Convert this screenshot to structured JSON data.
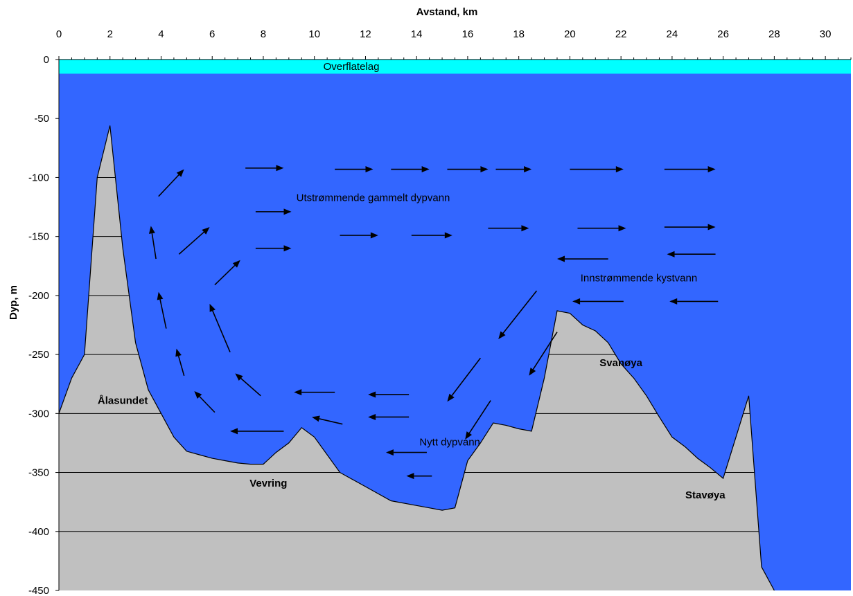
{
  "chart_data": {
    "type": "area",
    "xlabel": "Avstand, km",
    "ylabel": "Dyp, m",
    "xlim": [
      0,
      31
    ],
    "ylim": [
      -450,
      0
    ],
    "x_ticks": [
      0,
      2,
      4,
      6,
      8,
      10,
      12,
      14,
      16,
      18,
      20,
      22,
      24,
      26,
      28,
      30
    ],
    "y_ticks": [
      0,
      -50,
      -100,
      -150,
      -200,
      -250,
      -300,
      -350,
      -400,
      -450
    ],
    "x_minor_step": 0.5,
    "x_axis_position": "top",
    "grid": "horizontal, inside seabed only",
    "colors": {
      "water": "#3366ff",
      "surface_layer": "#00ffff",
      "seabed": "#c0c0c0",
      "arrows": "#000000"
    },
    "surface_layer": {
      "label": "Overflatelag",
      "depth_from": 0,
      "depth_to": -12
    },
    "bathymetry": {
      "x": [
        0,
        0.5,
        1,
        1.5,
        2,
        2.5,
        3,
        3.5,
        4,
        4.5,
        5,
        5.5,
        6,
        6.5,
        7,
        7.5,
        8,
        8.5,
        9,
        9.5,
        10,
        11,
        12,
        13,
        14,
        14.5,
        15,
        15.5,
        16,
        16.5,
        17,
        17.5,
        18,
        18.5,
        19,
        19.5,
        20,
        20.5,
        21,
        21.5,
        22,
        22.5,
        23,
        23.5,
        24,
        24.5,
        25,
        25.5,
        26,
        26.5,
        27,
        27.5,
        28
      ],
      "y": [
        -300,
        -270,
        -250,
        -100,
        -56,
        -160,
        -240,
        -280,
        -300,
        -320,
        -332,
        -335,
        -338,
        -340,
        -342,
        -343,
        -343,
        -333,
        -325,
        -312,
        -320,
        -350,
        -362,
        -374,
        -378,
        -380,
        -382,
        -380,
        -340,
        -325,
        -308,
        -310,
        -313,
        -315,
        -270,
        -213,
        -215,
        -225,
        -230,
        -240,
        -258,
        -270,
        -285,
        -303,
        -320,
        -328,
        -338,
        -346,
        -355,
        -320,
        -285,
        -430,
        -450
      ]
    },
    "annotations": [
      {
        "text": "Utstrømmende gammelt dypvann",
        "x": 12.3,
        "y": -120
      },
      {
        "text": "Innstrømmende kystvann",
        "x": 22.7,
        "y": -188
      },
      {
        "text": "Nytt dypvann",
        "x": 15.3,
        "y": -327
      },
      {
        "text": "Ålasundet",
        "x": 2.5,
        "y": -292,
        "bold": true
      },
      {
        "text": "Vevring",
        "x": 8.2,
        "y": -362,
        "bold": true
      },
      {
        "text": "Svanøya",
        "x": 22,
        "y": -260,
        "bold": true
      },
      {
        "text": "Stavøya",
        "x": 25.3,
        "y": -372,
        "bold": true
      }
    ],
    "flow_arrows": [
      [
        7.3,
        -92,
        8.8,
        -92
      ],
      [
        10.8,
        -93,
        12.3,
        -93
      ],
      [
        13,
        -93,
        14.5,
        -93
      ],
      [
        15.2,
        -93,
        16.8,
        -93
      ],
      [
        17.1,
        -93,
        18.5,
        -93
      ],
      [
        20,
        -93,
        22.1,
        -93
      ],
      [
        23.7,
        -93,
        25.7,
        -93
      ],
      [
        7.7,
        -129,
        9.1,
        -129
      ],
      [
        11,
        -149,
        12.5,
        -149
      ],
      [
        13.8,
        -149,
        15.4,
        -149
      ],
      [
        16.8,
        -143,
        18.4,
        -143
      ],
      [
        20.3,
        -143,
        22.2,
        -143
      ],
      [
        23.7,
        -142,
        25.7,
        -142
      ],
      [
        7.7,
        -160,
        9.1,
        -160
      ],
      [
        21.5,
        -169,
        19.5,
        -169
      ],
      [
        25.7,
        -165,
        23.8,
        -165
      ],
      [
        22.1,
        -205,
        20.1,
        -205
      ],
      [
        25.8,
        -205,
        23.9,
        -205
      ],
      [
        3.9,
        -116,
        4.9,
        -93
      ],
      [
        3.8,
        -169,
        3.6,
        -141
      ],
      [
        4.7,
        -165,
        5.9,
        -142
      ],
      [
        6.1,
        -191,
        7.1,
        -170
      ],
      [
        4.2,
        -228,
        3.9,
        -197
      ],
      [
        6.7,
        -248,
        5.9,
        -207
      ],
      [
        4.9,
        -268,
        4.6,
        -245
      ],
      [
        7.9,
        -285,
        6.9,
        -266
      ],
      [
        6.1,
        -299,
        5.3,
        -281
      ],
      [
        8.8,
        -315,
        6.7,
        -315
      ],
      [
        10.8,
        -282,
        9.2,
        -282
      ],
      [
        13.7,
        -284,
        12.1,
        -284
      ],
      [
        13.7,
        -303,
        12.1,
        -303
      ],
      [
        11.1,
        -309,
        9.9,
        -303
      ],
      [
        14.4,
        -333,
        12.8,
        -333
      ],
      [
        14.6,
        -353,
        13.6,
        -353
      ],
      [
        18.7,
        -196,
        17.2,
        -237
      ],
      [
        19.5,
        -231,
        18.4,
        -268
      ],
      [
        16.5,
        -253,
        15.2,
        -290
      ],
      [
        16.9,
        -289,
        15.9,
        -322
      ]
    ]
  }
}
